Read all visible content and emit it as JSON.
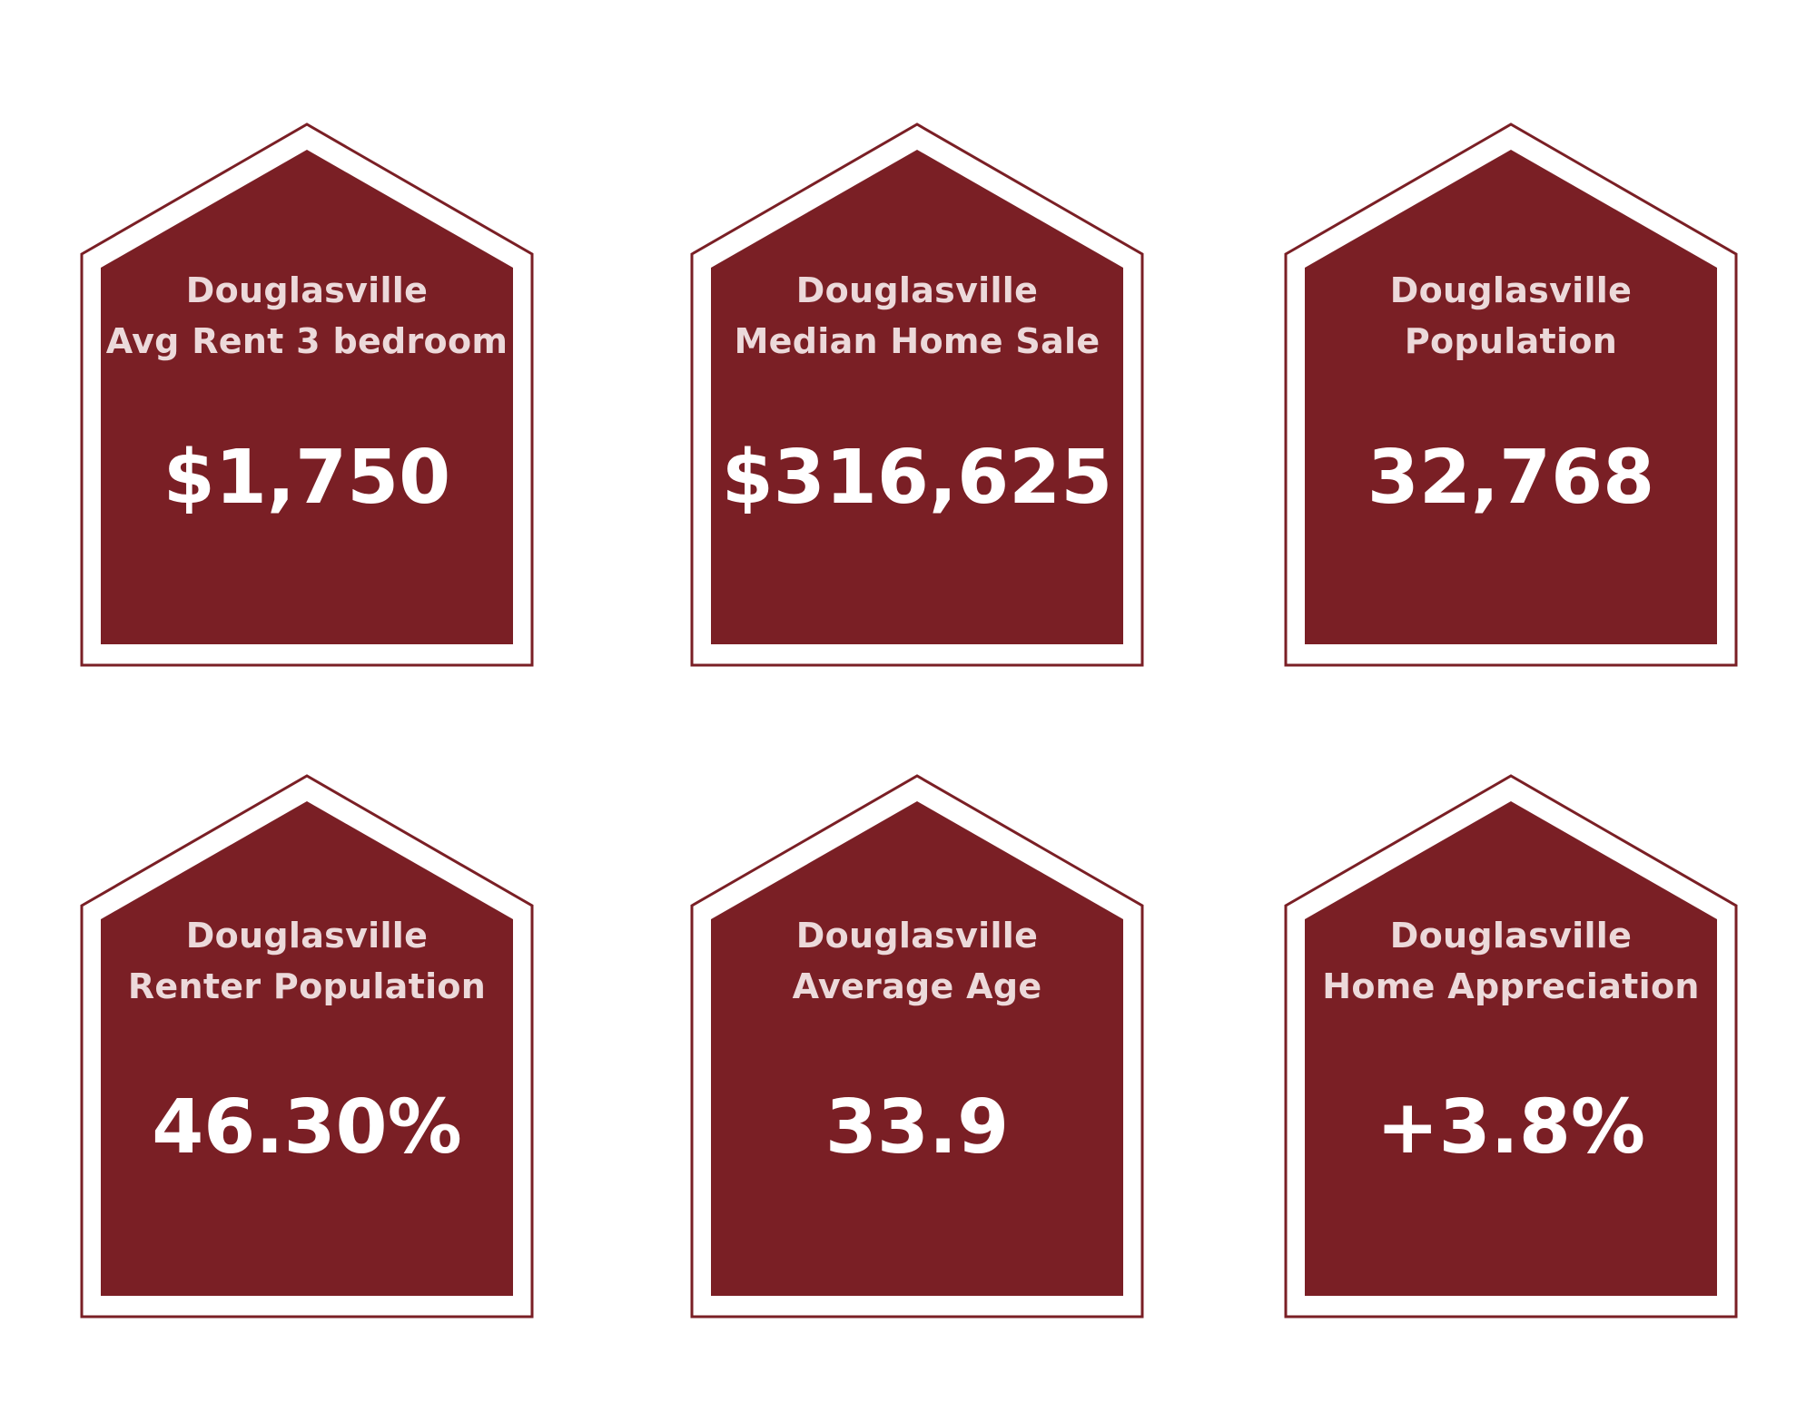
{
  "colors": {
    "house_fill": "#7a1f25",
    "house_outline": "#7a1f25",
    "label_text": "#ecd9da",
    "value_text": "#ffffff",
    "background": "#ffffff"
  },
  "cards": [
    {
      "city": "Douglasville",
      "metric": "Avg Rent 3 bedroom",
      "value": "$1,750"
    },
    {
      "city": "Douglasville",
      "metric": "Median Home Sale",
      "value": "$316,625"
    },
    {
      "city": "Douglasville",
      "metric": "Population",
      "value": "32,768"
    },
    {
      "city": "Douglasville",
      "metric": "Renter Population",
      "value": "46.30%"
    },
    {
      "city": "Douglasville",
      "metric": "Average Age",
      "value": "33.9"
    },
    {
      "city": "Douglasville",
      "metric": "Home Appreciation",
      "value": "+3.8%"
    }
  ]
}
